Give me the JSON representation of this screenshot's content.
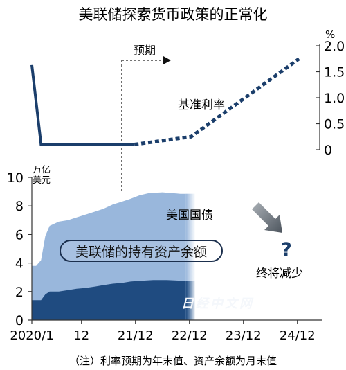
{
  "chart_data": [
    {
      "type": "line",
      "title": "美联储探索货币政策的正常化",
      "unit": "%",
      "yticks": [
        "0",
        "0.5",
        "1.0",
        "1.5",
        "2.0"
      ],
      "ylim": [
        0,
        2.0
      ],
      "forecast_label": "预期",
      "series_label": "基准利率",
      "series": [
        {
          "name": "基准利率",
          "actual": [
            [
              2020.0,
              1.63
            ],
            [
              2020.17,
              0.1
            ],
            [
              2021.9,
              0.1
            ]
          ],
          "projected": [
            [
              2021.9,
              0.1
            ],
            [
              2022.95,
              0.25
            ],
            [
              2024.95,
              1.75
            ]
          ]
        }
      ]
    },
    {
      "type": "area",
      "unit": "万亿\n美元",
      "unit_lines": [
        "万亿",
        "美元"
      ],
      "yticks": [
        "0",
        "2",
        "4",
        "6",
        "8",
        "10"
      ],
      "ylim": [
        0,
        10
      ],
      "x_tick_labels": [
        "2020/1",
        "12",
        "21/12",
        "22/12",
        "23/12",
        "24/12"
      ],
      "x_tick_values": [
        2020.0,
        2020.92,
        2021.92,
        2022.92,
        2023.92,
        2024.92
      ],
      "total_label": "美联储的持有资产余额",
      "treasury_label": "美国国债",
      "decline_label": "终将减少",
      "question_mark": "?",
      "watermark": "日经中文网",
      "total": [
        [
          2020.0,
          3.8
        ],
        [
          2020.08,
          3.8
        ],
        [
          2020.17,
          4.2
        ],
        [
          2020.25,
          5.9
        ],
        [
          2020.33,
          6.6
        ],
        [
          2020.5,
          6.9
        ],
        [
          2020.67,
          7.0
        ],
        [
          2020.83,
          7.2
        ],
        [
          2021.0,
          7.4
        ],
        [
          2021.17,
          7.6
        ],
        [
          2021.33,
          7.8
        ],
        [
          2021.5,
          8.1
        ],
        [
          2021.67,
          8.3
        ],
        [
          2021.83,
          8.5
        ],
        [
          2022.0,
          8.75
        ],
        [
          2022.17,
          8.9
        ],
        [
          2022.42,
          8.95
        ],
        [
          2022.6,
          8.9
        ],
        [
          2022.75,
          8.85
        ],
        [
          2022.85,
          8.85
        ]
      ],
      "treasury": [
        [
          2020.0,
          1.4
        ],
        [
          2020.17,
          1.4
        ],
        [
          2020.25,
          1.8
        ],
        [
          2020.33,
          2.0
        ],
        [
          2020.5,
          2.0
        ],
        [
          2020.67,
          2.1
        ],
        [
          2020.83,
          2.2
        ],
        [
          2021.0,
          2.25
        ],
        [
          2021.17,
          2.35
        ],
        [
          2021.33,
          2.45
        ],
        [
          2021.5,
          2.55
        ],
        [
          2021.67,
          2.6
        ],
        [
          2021.83,
          2.7
        ],
        [
          2022.0,
          2.75
        ],
        [
          2022.25,
          2.8
        ],
        [
          2022.5,
          2.8
        ],
        [
          2022.85,
          2.75
        ]
      ]
    }
  ],
  "note": "（注）利率预期为年末值、资产余额为月末值",
  "colors": {
    "navy": "#1b3e6b",
    "light_blue": "#99b7dc",
    "dark_blue": "#1f4b80",
    "arrow_gray": "#6f7780"
  }
}
